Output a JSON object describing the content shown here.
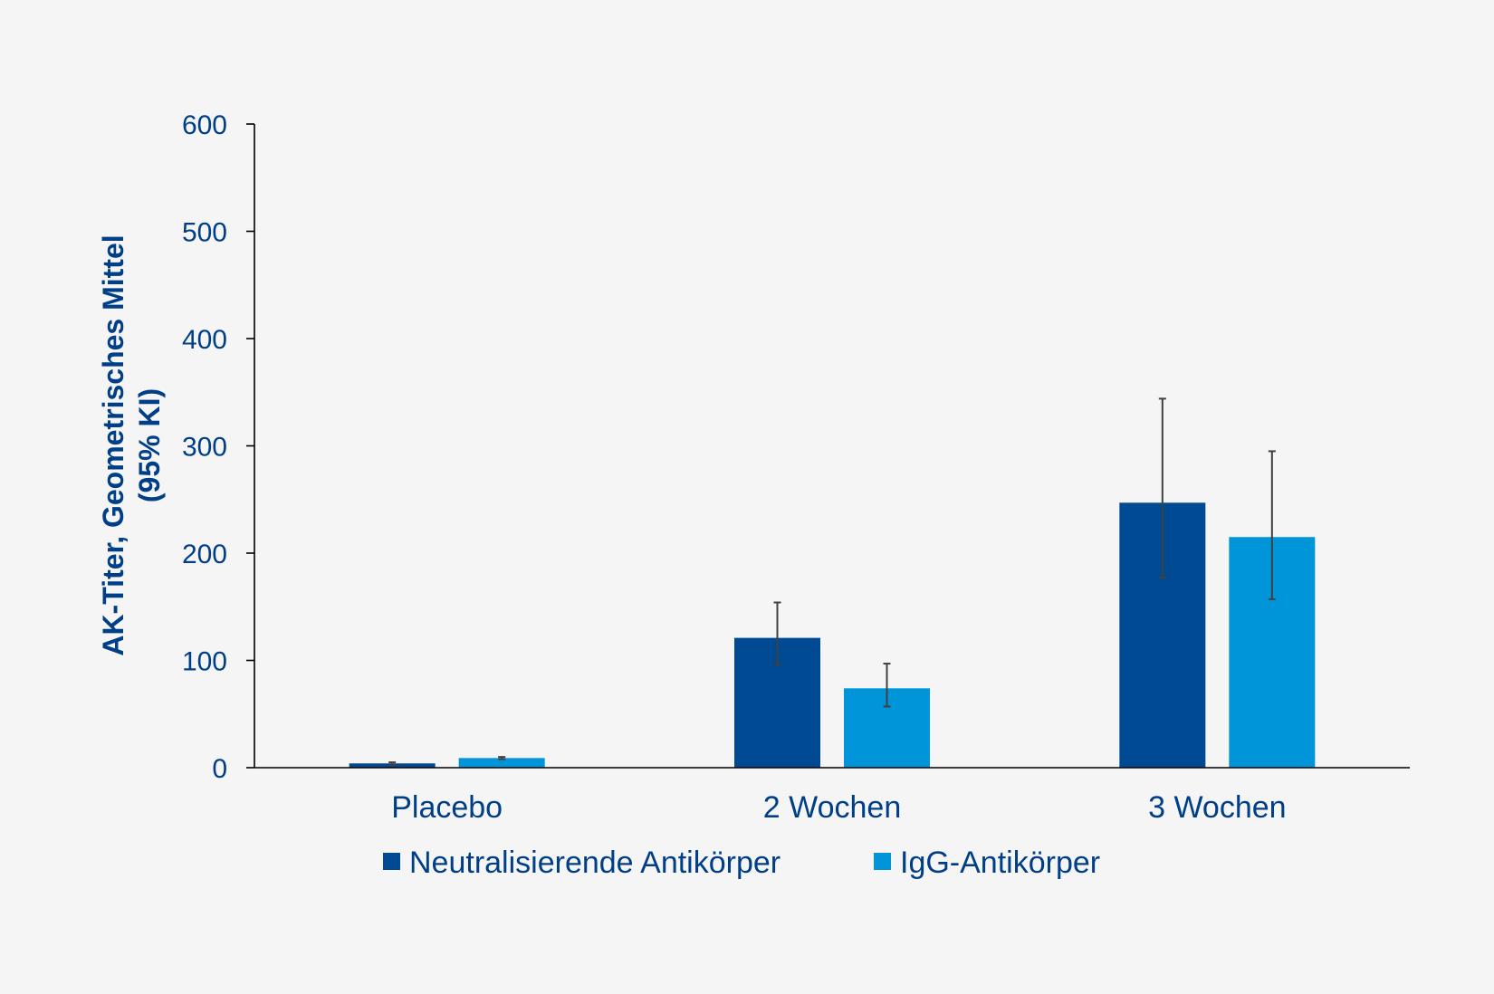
{
  "colors": {
    "text": "#003f87",
    "axis": "#000000",
    "error_bar": "#404040",
    "series_1": "#004a93",
    "series_2": "#0095d9"
  },
  "chart_data": {
    "type": "bar",
    "categories": [
      "Placebo",
      "2 Wochen",
      "3 Wochen"
    ],
    "series": [
      {
        "name": "Neutralisierende Antikörper",
        "values": [
          4,
          121,
          247
        ],
        "error_low": [
          3,
          96,
          177
        ],
        "error_high": [
          5,
          154,
          344
        ]
      },
      {
        "name": "IgG-Antikörper",
        "values": [
          9,
          74,
          215
        ],
        "error_low": [
          8,
          57,
          157
        ],
        "error_high": [
          10,
          97,
          295
        ]
      }
    ],
    "ylabel_lines": [
      "AK-Titer, Geometrisches Mittel",
      "(95% KI)"
    ],
    "ylim": [
      0,
      600
    ],
    "yticks": [
      0,
      100,
      200,
      300,
      400,
      500,
      600
    ],
    "grid": false,
    "legend_position": "bottom-center"
  }
}
